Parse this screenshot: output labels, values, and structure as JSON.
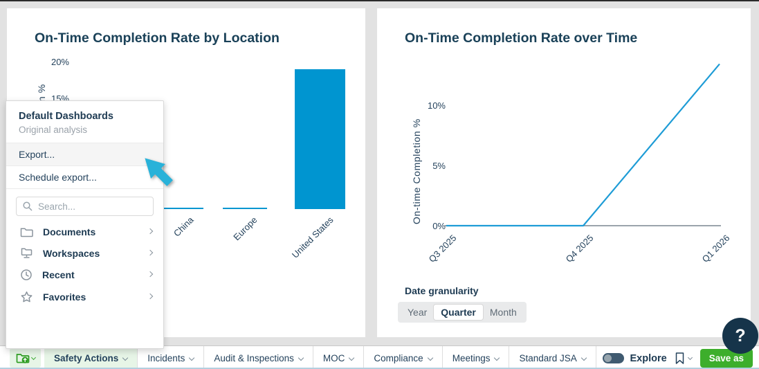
{
  "chart_data": [
    {
      "type": "bar",
      "title": "On-Time Completion Rate by Location",
      "ylabel": "On-time Completion %",
      "categories": [
        "China",
        "Europe",
        "United States"
      ],
      "values": [
        0,
        0,
        19
      ],
      "ylim": [
        0,
        20
      ],
      "yticks_visible": [
        "20%",
        "15%"
      ],
      "bar_color": "#0095d0",
      "grid": false,
      "legend": false
    },
    {
      "type": "line",
      "title": "On-Time Completion Rate over Time",
      "ylabel": "On-time Completion %",
      "x": [
        "Q3 2025",
        "Q4 2025",
        "Q1 2026"
      ],
      "values": [
        0,
        0,
        13.5
      ],
      "ylim": [
        0,
        14
      ],
      "yticks": [
        "10%",
        "5%",
        "0%"
      ],
      "line_color": "#1e9cd6",
      "axis_color": "#5f6e7b",
      "grid": false,
      "legend": false
    }
  ],
  "menu": {
    "header": "Default Dashboards",
    "subheader": "Original analysis",
    "export_label": "Export...",
    "schedule_export_label": "Schedule export...",
    "search_placeholder": "Search...",
    "items": [
      {
        "icon": "folder-icon",
        "label": "Documents"
      },
      {
        "icon": "workspace-icon",
        "label": "Workspaces"
      },
      {
        "icon": "clock-icon",
        "label": "Recent"
      },
      {
        "icon": "star-icon",
        "label": "Favorites"
      }
    ]
  },
  "right_card": {
    "date_granularity": {
      "label": "Date granularity",
      "options": [
        "Year",
        "Quarter",
        "Month"
      ],
      "selected": "Quarter"
    }
  },
  "tabbar": {
    "tabs": [
      {
        "label": "Safety Actions",
        "active": true
      },
      {
        "label": "Incidents",
        "active": false
      },
      {
        "label": "Audit & Inspections",
        "active": false
      },
      {
        "label": "MOC",
        "active": false
      },
      {
        "label": "Compliance",
        "active": false
      },
      {
        "label": "Meetings",
        "active": false
      },
      {
        "label": "Standard JSA",
        "active": false
      }
    ],
    "explore_label": "Explore",
    "save_as_label": "Save as"
  },
  "help": {
    "label": "?"
  },
  "colors": {
    "chart_blue": "#0095d0",
    "arrow_blue": "#29b2d9",
    "green": "#3dae2c",
    "light_green_bg": "#e7f5e7",
    "navy_text": "#1d3a52"
  }
}
